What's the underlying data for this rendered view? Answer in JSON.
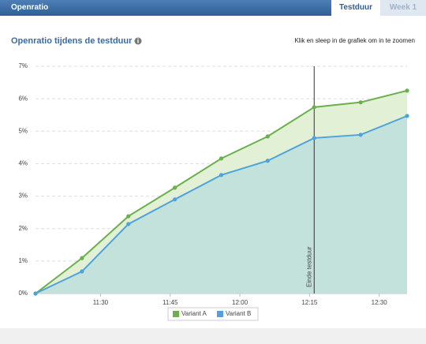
{
  "header": {
    "title": "Openratio",
    "tabs": [
      "Testduur",
      "Week 1"
    ]
  },
  "chart_data": {
    "type": "area",
    "title": "Openratio tijdens de testduur",
    "subtitle": "Klik en sleep in de grafiek om in te zoomen",
    "x": [
      "11:16",
      "11:26",
      "11:36",
      "11:46",
      "11:56",
      "12:06",
      "12:16",
      "12:26",
      "12:36"
    ],
    "series": [
      {
        "name": "Variant A",
        "color": "#6ab04c",
        "fill": "#e2f0d6",
        "values": [
          0,
          1.09,
          2.38,
          3.26,
          4.16,
          4.84,
          5.74,
          5.89,
          6.25
        ]
      },
      {
        "name": "Variant B",
        "color": "#4ea3dc",
        "fill": "#c3e2dc",
        "values": [
          0,
          0.68,
          2.14,
          2.9,
          3.65,
          4.09,
          4.79,
          4.89,
          5.47
        ]
      }
    ],
    "xlim": [
      "11:16",
      "12:36"
    ],
    "xticks": [
      "11:30",
      "11:45",
      "12:00",
      "12:15",
      "12:30"
    ],
    "ylim": [
      0,
      7
    ],
    "yticks": [
      {
        "value": 0,
        "label": "0%"
      },
      {
        "value": 1,
        "label": "1%"
      },
      {
        "value": 2,
        "label": "2%"
      },
      {
        "value": 3,
        "label": "3%"
      },
      {
        "value": 4,
        "label": "4%"
      },
      {
        "value": 5,
        "label": "5%"
      },
      {
        "value": 6,
        "label": "6%"
      },
      {
        "value": 7,
        "label": "7%"
      }
    ],
    "grid": true,
    "legend": "bottom",
    "plot_line": {
      "x": "12:16",
      "label": "Einde testduur"
    }
  }
}
